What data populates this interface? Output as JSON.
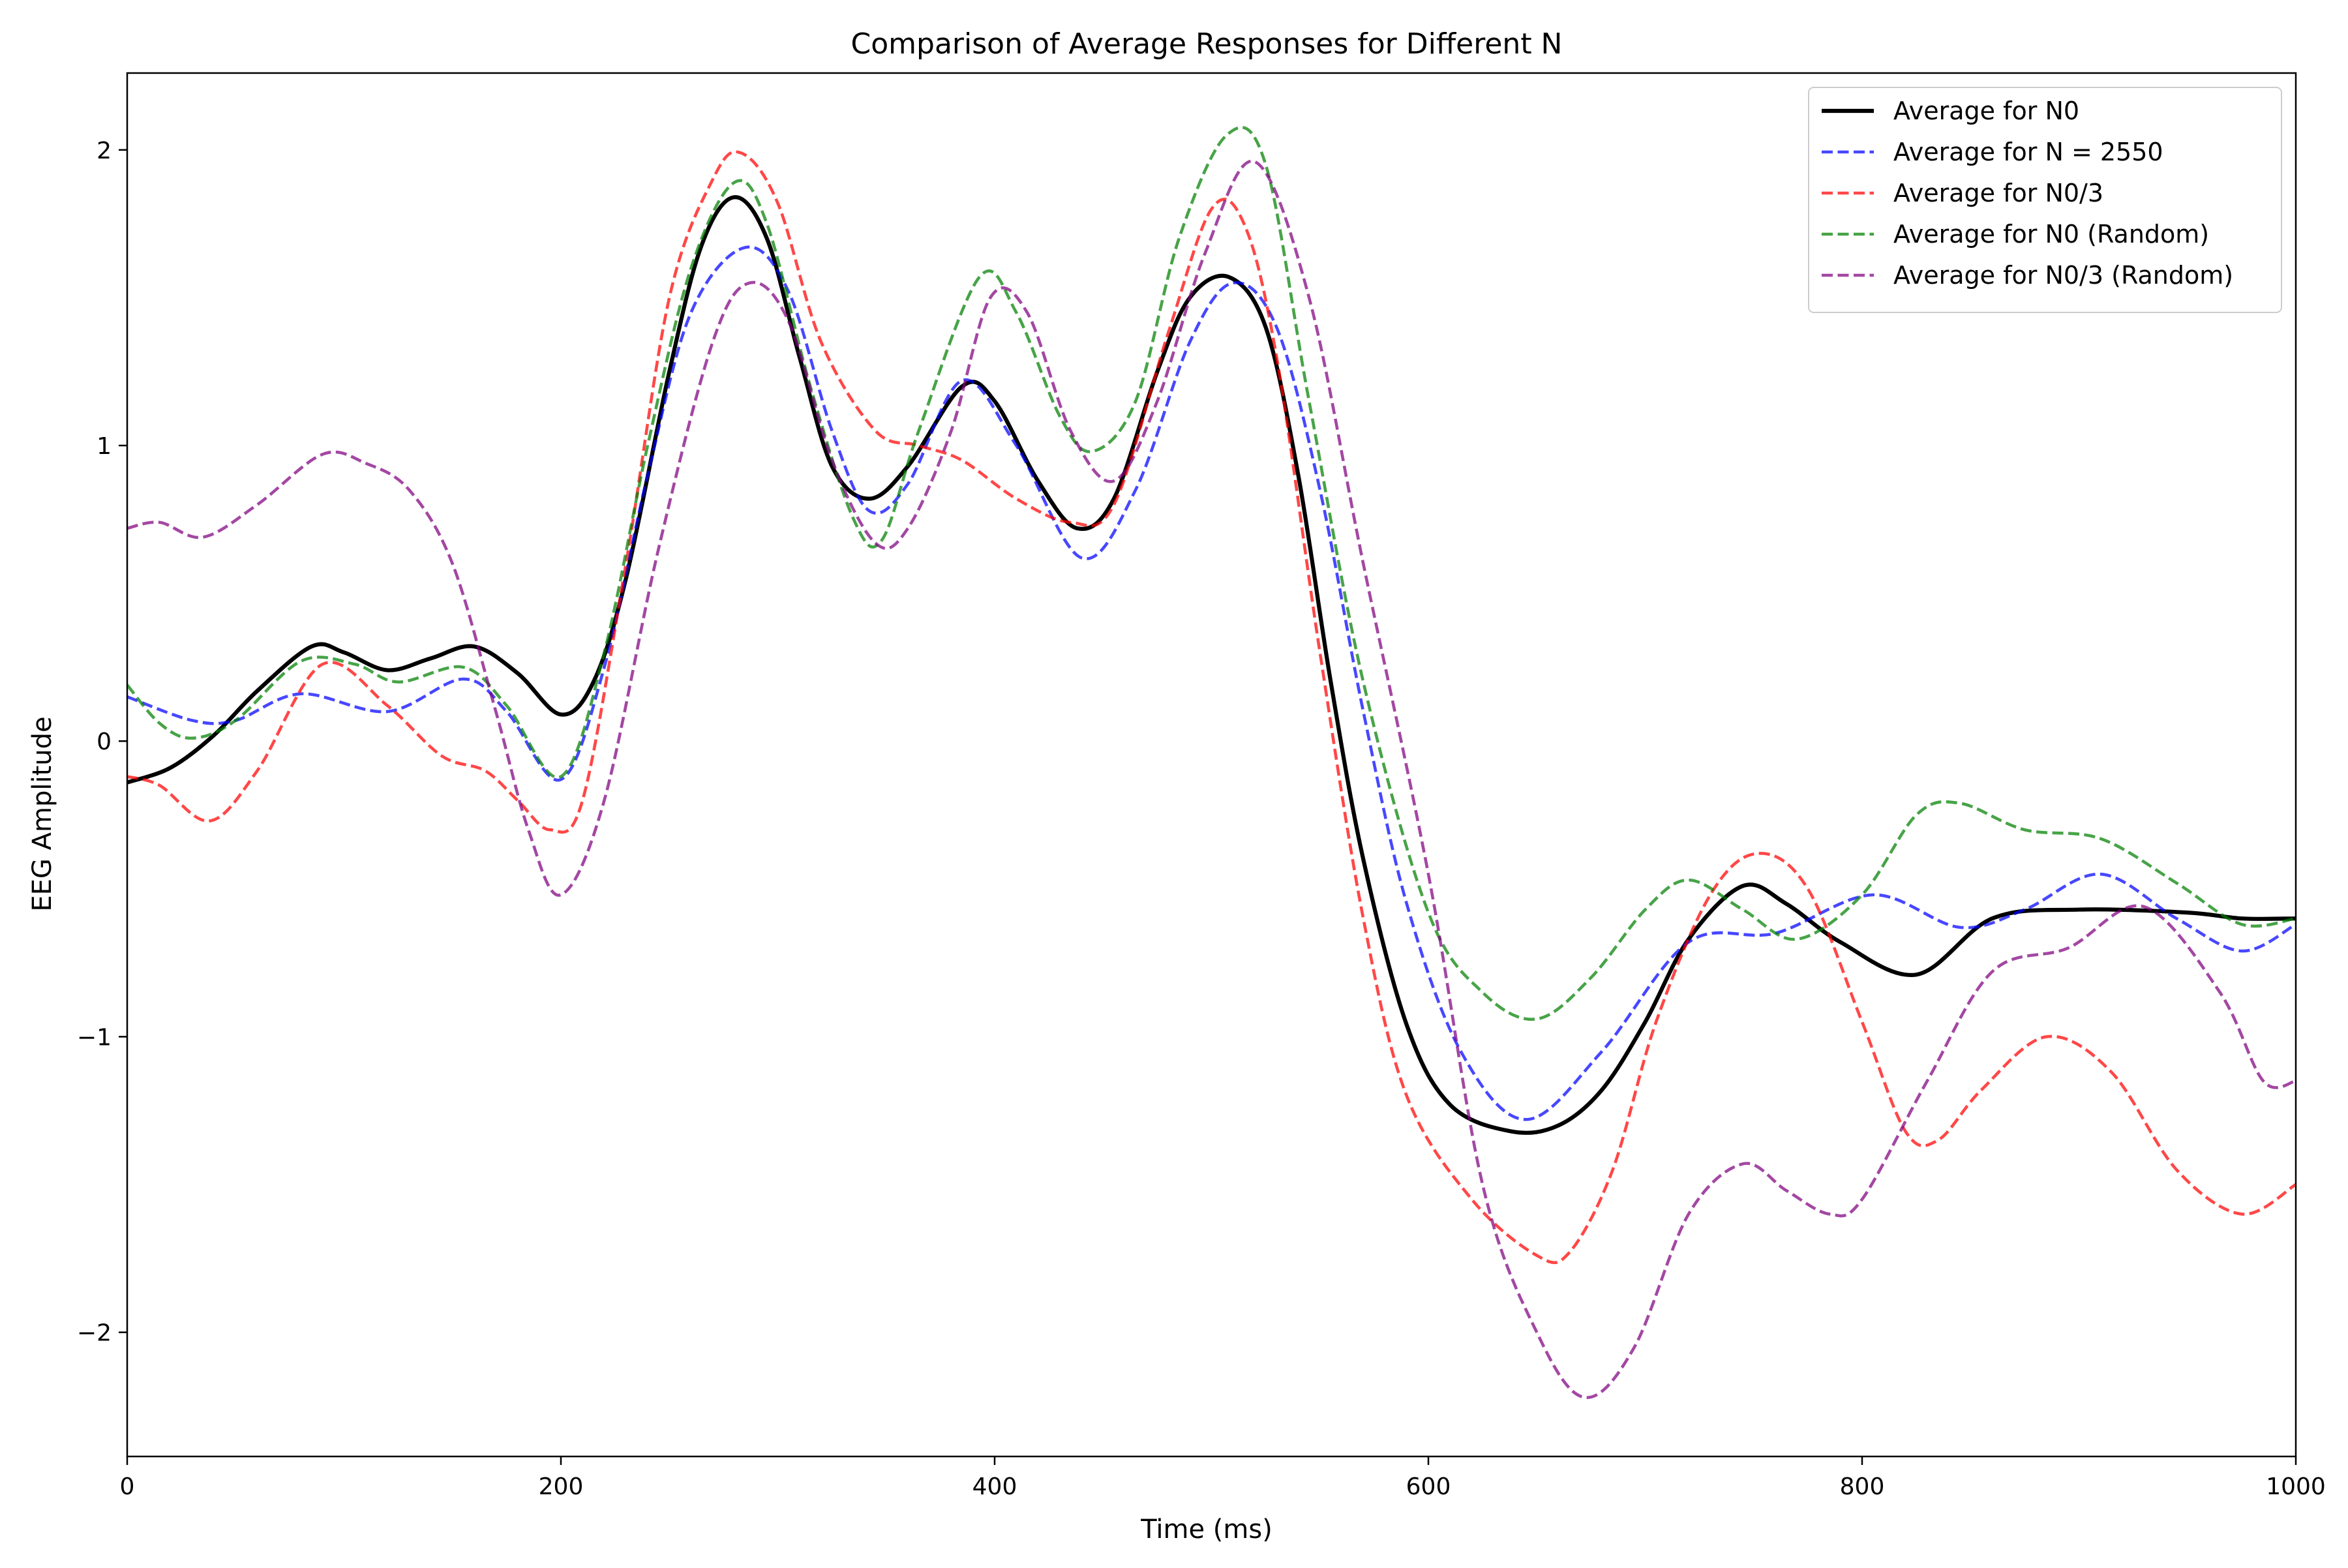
{
  "chart_data": {
    "type": "line",
    "title": "Comparison of Average Responses for Different N",
    "xlabel": "Time (ms)",
    "ylabel": "EEG Amplitude",
    "xlim": [
      0,
      1000
    ],
    "ylim": [
      -2.42,
      2.26
    ],
    "xticks": [
      0,
      200,
      400,
      600,
      800,
      1000
    ],
    "yticks": [
      -2,
      -1,
      0,
      1,
      2
    ],
    "grid": false,
    "legend_position": "top-right",
    "series": [
      {
        "name": "Average for N0",
        "color": "#000000",
        "style": "solid",
        "x": [
          0,
          20,
          40,
          60,
          85,
          100,
          120,
          140,
          160,
          180,
          200,
          215,
          230,
          250,
          265,
          280,
          295,
          310,
          325,
          342,
          360,
          385,
          400,
          420,
          438,
          455,
          475,
          490,
          508,
          525,
          540,
          555,
          570,
          590,
          610,
          638,
          660,
          680,
          700,
          720,
          745,
          765,
          790,
          825,
          860,
          900,
          950,
          975,
          1000
        ],
        "y": [
          -0.14,
          -0.09,
          0.02,
          0.17,
          0.32,
          0.3,
          0.24,
          0.28,
          0.32,
          0.23,
          0.09,
          0.2,
          0.55,
          1.25,
          1.68,
          1.84,
          1.7,
          1.3,
          0.93,
          0.82,
          0.93,
          1.2,
          1.15,
          0.88,
          0.72,
          0.82,
          1.25,
          1.5,
          1.57,
          1.4,
          0.9,
          0.2,
          -0.4,
          -0.96,
          -1.23,
          -1.32,
          -1.3,
          -1.18,
          -0.95,
          -0.67,
          -0.49,
          -0.55,
          -0.68,
          -0.79,
          -0.6,
          -0.57,
          -0.58,
          -0.6,
          -0.6
        ]
      },
      {
        "name": "Average for N = 2550",
        "color": "#0000ff",
        "style": "dashed",
        "x": [
          0,
          30,
          50,
          80,
          120,
          155,
          175,
          200,
          220,
          240,
          260,
          285,
          305,
          325,
          342,
          360,
          385,
          410,
          440,
          465,
          490,
          510,
          530,
          550,
          570,
          590,
          615,
          645,
          680,
          720,
          760,
          805,
          845,
          875,
          910,
          945,
          975,
          1000
        ],
        "y": [
          0.15,
          0.07,
          0.07,
          0.16,
          0.1,
          0.21,
          0.1,
          -0.13,
          0.25,
          0.9,
          1.45,
          1.67,
          1.52,
          1.05,
          0.78,
          0.87,
          1.22,
          1.0,
          0.62,
          0.85,
          1.35,
          1.55,
          1.4,
          0.85,
          0.1,
          -0.55,
          -1.05,
          -1.28,
          -1.05,
          -0.68,
          -0.65,
          -0.52,
          -0.63,
          -0.57,
          -0.45,
          -0.6,
          -0.71,
          -0.62
        ]
      },
      {
        "name": "Average for N0/3",
        "color": "#ff0000",
        "style": "dashed",
        "x": [
          0,
          15,
          38,
          60,
          90,
          120,
          145,
          165,
          180,
          195,
          210,
          230,
          250,
          270,
          283,
          300,
          320,
          345,
          365,
          385,
          410,
          435,
          455,
          480,
          500,
          515,
          530,
          550,
          570,
          590,
          620,
          650,
          665,
          685,
          705,
          730,
          752,
          775,
          800,
          820,
          835,
          855,
          885,
          915,
          945,
          975,
          1000
        ],
        "y": [
          -0.12,
          -0.15,
          -0.27,
          -0.1,
          0.26,
          0.12,
          -0.05,
          -0.1,
          -0.2,
          -0.3,
          -0.2,
          0.6,
          1.5,
          1.9,
          1.99,
          1.82,
          1.35,
          1.05,
          1.0,
          0.95,
          0.82,
          0.74,
          0.8,
          1.38,
          1.8,
          1.75,
          1.3,
          0.3,
          -0.6,
          -1.2,
          -1.55,
          -1.74,
          -1.73,
          -1.45,
          -0.95,
          -0.52,
          -0.38,
          -0.5,
          -0.95,
          -1.32,
          -1.35,
          -1.18,
          -1.0,
          -1.12,
          -1.45,
          -1.6,
          -1.5
        ]
      },
      {
        "name": "Average for N0 (Random)",
        "color": "#008000",
        "style": "dashed",
        "x": [
          0,
          15,
          30,
          50,
          80,
          105,
          125,
          155,
          175,
          200,
          220,
          240,
          260,
          280,
          295,
          315,
          335,
          348,
          365,
          393,
          410,
          430,
          445,
          465,
          485,
          507,
          525,
          545,
          570,
          600,
          625,
          650,
          675,
          700,
          720,
          745,
          770,
          800,
          825,
          845,
          875,
          910,
          945,
          975,
          1000
        ],
        "y": [
          0.19,
          0.06,
          0.01,
          0.07,
          0.27,
          0.26,
          0.2,
          0.25,
          0.12,
          -0.12,
          0.3,
          1.0,
          1.6,
          1.89,
          1.75,
          1.2,
          0.75,
          0.68,
          1.05,
          1.57,
          1.45,
          1.1,
          0.98,
          1.15,
          1.7,
          2.05,
          1.95,
          1.15,
          0.2,
          -0.58,
          -0.85,
          -0.94,
          -0.8,
          -0.57,
          -0.47,
          -0.57,
          -0.67,
          -0.52,
          -0.25,
          -0.21,
          -0.3,
          -0.33,
          -0.48,
          -0.62,
          -0.6
        ]
      },
      {
        "name": "Average for N0/3 (Random)",
        "color": "#800080",
        "style": "dashed",
        "x": [
          0,
          15,
          35,
          60,
          90,
          110,
          130,
          150,
          170,
          185,
          200,
          220,
          245,
          270,
          287,
          305,
          325,
          345,
          360,
          380,
          398,
          415,
          435,
          455,
          475,
          497,
          520,
          545,
          570,
          600,
          625,
          650,
          672,
          695,
          720,
          745,
          765,
          785,
          800,
          830,
          860,
          895,
          930,
          965,
          985,
          1000
        ],
        "y": [
          0.72,
          0.74,
          0.69,
          0.8,
          0.97,
          0.94,
          0.85,
          0.6,
          0.1,
          -0.3,
          -0.52,
          -0.2,
          0.65,
          1.35,
          1.55,
          1.42,
          0.95,
          0.67,
          0.72,
          1.05,
          1.5,
          1.45,
          1.05,
          0.88,
          1.15,
          1.65,
          1.96,
          1.5,
          0.6,
          -0.45,
          -1.5,
          -2.0,
          -2.22,
          -2.05,
          -1.6,
          -1.43,
          -1.52,
          -1.6,
          -1.55,
          -1.15,
          -0.78,
          -0.7,
          -0.56,
          -0.85,
          -1.15,
          -1.15
        ]
      }
    ]
  }
}
